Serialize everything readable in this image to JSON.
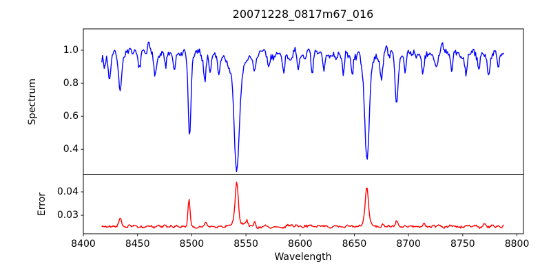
{
  "figure": {
    "background": "#ffffff",
    "text_color": "#000000",
    "frame_color": "#000000"
  },
  "chart_data": {
    "type": "line",
    "title": "20071228_0817m67_016",
    "xlabel": "Wavelength",
    "xlim": [
      8400,
      8806
    ],
    "x_ticks": [
      8400,
      8450,
      8500,
      8550,
      8600,
      8650,
      8700,
      8750,
      8800
    ],
    "x_tick_labels": [
      "8400",
      "8450",
      "8500",
      "8550",
      "8600",
      "8650",
      "8700",
      "8750",
      "8800"
    ],
    "x_data_start": 8417,
    "x_data_end": 8788,
    "x_step": 0.74,
    "grid": false,
    "legend": "none",
    "panels": [
      {
        "name": "spectrum",
        "ylabel": "Spectrum",
        "line_color": "#0000ff",
        "ylim": [
          0.249,
          1.129
        ],
        "y_ticks": [
          1.0,
          0.8,
          0.6,
          0.4
        ],
        "y_tick_labels": [
          "1.0",
          "0.8",
          "0.6",
          "0.4"
        ],
        "continuum": 0.972,
        "noise_sigma": 0.02,
        "feature_note": "absorption dips: depth subtracted from continuum at center (negative depth = emission bump)",
        "features": [
          {
            "center": 8419.5,
            "depth": 0.08,
            "sigma": 0.8
          },
          {
            "center": 8424,
            "depth": 0.15,
            "sigma": 1.0
          },
          {
            "center": 8434,
            "depth": 0.23,
            "sigma": 1.2
          },
          {
            "center": 8452,
            "depth": 0.08,
            "sigma": 0.9
          },
          {
            "center": 8460,
            "depth": -0.05,
            "sigma": 1.0
          },
          {
            "center": 8466,
            "depth": 0.1,
            "sigma": 1.0
          },
          {
            "center": 8476,
            "depth": 0.07,
            "sigma": 0.9
          },
          {
            "center": 8484,
            "depth": 0.12,
            "sigma": 1.0
          },
          {
            "center": 8498,
            "depth": 0.5,
            "sigma": 1.3
          },
          {
            "center": 8512,
            "depth": 0.16,
            "sigma": 1.0
          },
          {
            "center": 8517,
            "depth": 0.1,
            "sigma": 0.9
          },
          {
            "center": 8525,
            "depth": 0.11,
            "sigma": 0.9
          },
          {
            "center": 8541.5,
            "depth": 0.57,
            "sigma": 2.3
          },
          {
            "center": 8541.5,
            "depth": 0.13,
            "sigma": 6.0
          },
          {
            "center": 8558,
            "depth": 0.1,
            "sigma": 1.0
          },
          {
            "center": 8571,
            "depth": 0.08,
            "sigma": 0.9
          },
          {
            "center": 8585,
            "depth": 0.09,
            "sigma": 1.0
          },
          {
            "center": 8598,
            "depth": 0.11,
            "sigma": 1.0
          },
          {
            "center": 8611,
            "depth": 0.13,
            "sigma": 1.0
          },
          {
            "center": 8622,
            "depth": 0.1,
            "sigma": 0.9
          },
          {
            "center": 8640,
            "depth": 0.11,
            "sigma": 0.9
          },
          {
            "center": 8648,
            "depth": 0.13,
            "sigma": 1.0
          },
          {
            "center": 8655,
            "depth": -0.07,
            "sigma": 1.1
          },
          {
            "center": 8661.5,
            "depth": 0.55,
            "sigma": 1.9
          },
          {
            "center": 8661.5,
            "depth": 0.1,
            "sigma": 5.0
          },
          {
            "center": 8675,
            "depth": 0.16,
            "sigma": 1.0
          },
          {
            "center": 8680,
            "depth": -0.055,
            "sigma": 1.0
          },
          {
            "center": 8689,
            "depth": 0.27,
            "sigma": 1.3
          },
          {
            "center": 8697,
            "depth": 0.13,
            "sigma": 0.9
          },
          {
            "center": 8713,
            "depth": 0.1,
            "sigma": 1.0
          },
          {
            "center": 8726,
            "depth": 0.09,
            "sigma": 0.9
          },
          {
            "center": 8731,
            "depth": -0.05,
            "sigma": 0.9
          },
          {
            "center": 8740,
            "depth": 0.1,
            "sigma": 0.9
          },
          {
            "center": 8753,
            "depth": 0.11,
            "sigma": 1.0
          },
          {
            "center": 8765,
            "depth": 0.09,
            "sigma": 0.9
          },
          {
            "center": 8774,
            "depth": 0.12,
            "sigma": 1.1
          },
          {
            "center": 8783,
            "depth": 0.09,
            "sigma": 0.9
          }
        ]
      },
      {
        "name": "error",
        "ylabel": "Error",
        "line_color": "#ff0000",
        "ylim": [
          0.0221,
          0.0475
        ],
        "y_ticks": [
          0.04,
          0.03
        ],
        "y_tick_labels": [
          "0.04",
          "0.03"
        ],
        "baseline": 0.0252,
        "noise_sigma": 0.00045,
        "feature_note": "error spikes: height added to baseline at center",
        "features": [
          {
            "center": 8434,
            "height": 0.0042,
            "sigma": 1.1
          },
          {
            "center": 8497.5,
            "height": 0.0118,
            "sigma": 1.0
          },
          {
            "center": 8513,
            "height": 0.0018,
            "sigma": 0.9
          },
          {
            "center": 8541.5,
            "height": 0.017,
            "sigma": 1.4
          },
          {
            "center": 8541.5,
            "height": 0.0022,
            "sigma": 4.0
          },
          {
            "center": 8551,
            "height": 0.0028,
            "sigma": 0.9
          },
          {
            "center": 8558,
            "height": 0.002,
            "sigma": 0.9
          },
          {
            "center": 8661.5,
            "height": 0.0148,
            "sigma": 1.4
          },
          {
            "center": 8661.5,
            "height": 0.002,
            "sigma": 4.0
          },
          {
            "center": 8676,
            "height": 0.0013,
            "sigma": 0.9
          },
          {
            "center": 8689,
            "height": 0.0026,
            "sigma": 1.1
          },
          {
            "center": 8714,
            "height": 0.0012,
            "sigma": 0.9
          },
          {
            "center": 8770,
            "height": 0.0014,
            "sigma": 1.0
          }
        ]
      }
    ]
  }
}
